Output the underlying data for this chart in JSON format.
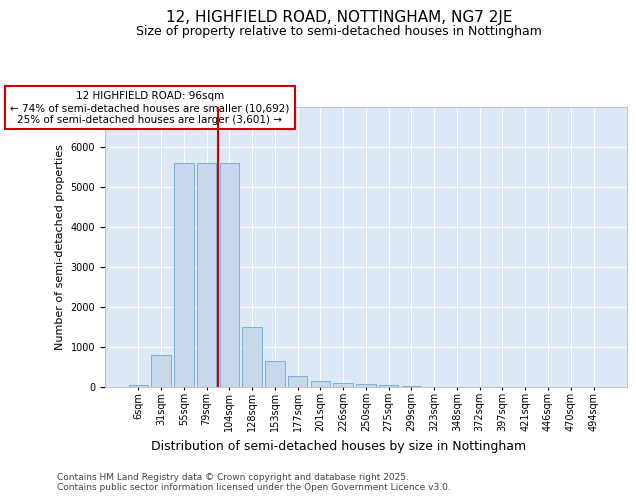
{
  "title": "12, HIGHFIELD ROAD, NOTTINGHAM, NG7 2JE",
  "subtitle": "Size of property relative to semi-detached houses in Nottingham",
  "xlabel": "Distribution of semi-detached houses by size in Nottingham",
  "ylabel": "Number of semi-detached properties",
  "categories": [
    "6sqm",
    "31sqm",
    "55sqm",
    "79sqm",
    "104sqm",
    "128sqm",
    "153sqm",
    "177sqm",
    "201sqm",
    "226sqm",
    "250sqm",
    "275sqm",
    "299sqm",
    "323sqm",
    "348sqm",
    "372sqm",
    "397sqm",
    "421sqm",
    "446sqm",
    "470sqm",
    "494sqm"
  ],
  "values": [
    60,
    800,
    5600,
    5600,
    5600,
    1500,
    650,
    280,
    155,
    105,
    80,
    60,
    30,
    10,
    5,
    2,
    1,
    0,
    0,
    0,
    0
  ],
  "bar_color": "#c8d8ec",
  "bar_edge_color": "#6aaad4",
  "red_line_index": 4,
  "red_line_color": "#cc0000",
  "annotation_text": "12 HIGHFIELD ROAD: 96sqm\n← 74% of semi-detached houses are smaller (10,692)\n25% of semi-detached houses are larger (3,601) →",
  "annotation_box_color": "#ffffff",
  "annotation_box_edge_color": "#cc0000",
  "ylim": [
    0,
    7000
  ],
  "yticks": [
    0,
    1000,
    2000,
    3000,
    4000,
    5000,
    6000,
    7000
  ],
  "background_color": "#dce8f5",
  "grid_color": "#ffffff",
  "footer": "Contains HM Land Registry data © Crown copyright and database right 2025.\nContains public sector information licensed under the Open Government Licence v3.0.",
  "title_fontsize": 11,
  "subtitle_fontsize": 9,
  "xlabel_fontsize": 9,
  "ylabel_fontsize": 8,
  "tick_fontsize": 7,
  "annotation_fontsize": 7.5,
  "footer_fontsize": 6.5
}
